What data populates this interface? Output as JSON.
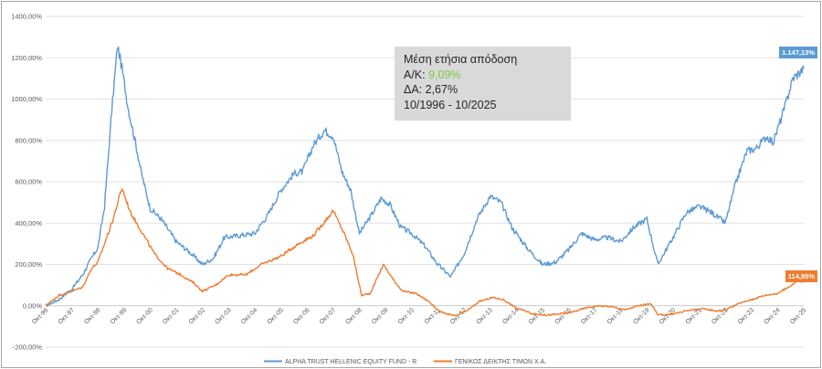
{
  "chart_data": {
    "type": "line",
    "ylim": [
      -200,
      1400
    ],
    "yticks": [
      "-200,00%",
      "0,00%",
      "200,00%",
      "400,00%",
      "600,00%",
      "800,00%",
      "1000,00%",
      "1200,00%",
      "1400,00%"
    ],
    "ytick_values": [
      -200,
      0,
      200,
      400,
      600,
      800,
      1000,
      1200,
      1400
    ],
    "xticks": [
      "Οκτ-96",
      "Οκτ-97",
      "Οκτ-98",
      "Οκτ-99",
      "Οκτ-00",
      "Οκτ-01",
      "Οκτ-02",
      "Οκτ-03",
      "Οκτ-04",
      "Οκτ-05",
      "Οκτ-06",
      "Οκτ-07",
      "Οκτ-08",
      "Οκτ-09",
      "Οκτ-10",
      "Οκτ-11",
      "Οκτ-12",
      "Οκτ-13",
      "Οκτ-14",
      "Οκτ-15",
      "Οκτ-16",
      "Οκτ-17",
      "Οκτ-18",
      "Οκτ-19",
      "Οκτ-20",
      "Οκτ-21",
      "Οκτ-22",
      "Οκτ-23",
      "Οκτ-24",
      "Οκτ-25"
    ],
    "grid": true,
    "legend": "bottom",
    "series": [
      {
        "name": "ALPHA TRUST HELLENIC EQUITY FUND - R",
        "color": "#5b9bd5",
        "end_label": "1.147,13%",
        "points": [
          [
            "1996-10",
            0
          ],
          [
            "1997-04",
            30
          ],
          [
            "1997-10",
            80
          ],
          [
            "1998-03",
            150
          ],
          [
            "1998-07",
            230
          ],
          [
            "1998-10",
            280
          ],
          [
            "1999-01",
            480
          ],
          [
            "1999-04",
            900
          ],
          [
            "1999-07",
            1260
          ],
          [
            "1999-09",
            1150
          ],
          [
            "1999-12",
            950
          ],
          [
            "2000-03",
            800
          ],
          [
            "2000-06",
            640
          ],
          [
            "2000-10",
            470
          ],
          [
            "2001-03",
            420
          ],
          [
            "2001-10",
            310
          ],
          [
            "2002-04",
            260
          ],
          [
            "2002-10",
            200
          ],
          [
            "2003-03",
            230
          ],
          [
            "2003-08",
            330
          ],
          [
            "2004-03",
            340
          ],
          [
            "2004-10",
            350
          ],
          [
            "2005-04",
            440
          ],
          [
            "2005-10",
            560
          ],
          [
            "2006-04",
            640
          ],
          [
            "2006-08",
            650
          ],
          [
            "2007-01",
            780
          ],
          [
            "2007-06",
            850
          ],
          [
            "2007-10",
            820
          ],
          [
            "2008-02",
            650
          ],
          [
            "2008-06",
            560
          ],
          [
            "2008-10",
            350
          ],
          [
            "2009-03",
            430
          ],
          [
            "2009-08",
            520
          ],
          [
            "2009-12",
            490
          ],
          [
            "2010-05",
            380
          ],
          [
            "2010-10",
            350
          ],
          [
            "2011-04",
            290
          ],
          [
            "2011-10",
            200
          ],
          [
            "2012-04",
            140
          ],
          [
            "2012-10",
            250
          ],
          [
            "2013-04",
            420
          ],
          [
            "2013-10",
            530
          ],
          [
            "2014-03",
            500
          ],
          [
            "2014-08",
            380
          ],
          [
            "2015-03",
            280
          ],
          [
            "2015-10",
            200
          ],
          [
            "2016-04",
            210
          ],
          [
            "2016-10",
            270
          ],
          [
            "2017-04",
            350
          ],
          [
            "2017-10",
            320
          ],
          [
            "2018-04",
            330
          ],
          [
            "2018-10",
            310
          ],
          [
            "2019-04",
            380
          ],
          [
            "2019-10",
            420
          ],
          [
            "2020-03",
            200
          ],
          [
            "2020-10",
            330
          ],
          [
            "2021-04",
            450
          ],
          [
            "2021-10",
            480
          ],
          [
            "2022-04",
            450
          ],
          [
            "2022-10",
            400
          ],
          [
            "2023-03",
            600
          ],
          [
            "2023-08",
            750
          ],
          [
            "2023-12",
            760
          ],
          [
            "2024-05",
            820
          ],
          [
            "2024-08",
            790
          ],
          [
            "2025-01",
            950
          ],
          [
            "2025-05",
            1100
          ],
          [
            "2025-10",
            1147.13
          ]
        ]
      },
      {
        "name": "ΓΕΝΙΚΟΣ ΔΕΙΚΤΗΣ ΤΙΜΩΝ Χ.Α.",
        "color": "#ed7d31",
        "end_label": "114,85%",
        "points": [
          [
            "1996-10",
            0
          ],
          [
            "1997-04",
            50
          ],
          [
            "1997-10",
            70
          ],
          [
            "1998-03",
            90
          ],
          [
            "1998-07",
            180
          ],
          [
            "1998-10",
            210
          ],
          [
            "1999-01",
            300
          ],
          [
            "1999-05",
            420
          ],
          [
            "1999-09",
            570
          ],
          [
            "2000-01",
            450
          ],
          [
            "2000-06",
            360
          ],
          [
            "2000-12",
            250
          ],
          [
            "2001-06",
            180
          ],
          [
            "2001-12",
            150
          ],
          [
            "2002-06",
            110
          ],
          [
            "2002-10",
            70
          ],
          [
            "2003-04",
            100
          ],
          [
            "2003-10",
            150
          ],
          [
            "2004-06",
            150
          ],
          [
            "2005-01",
            200
          ],
          [
            "2005-10",
            240
          ],
          [
            "2006-06",
            300
          ],
          [
            "2007-01",
            340
          ],
          [
            "2007-10",
            460
          ],
          [
            "2008-03",
            350
          ],
          [
            "2008-07",
            250
          ],
          [
            "2008-11",
            50
          ],
          [
            "2009-03",
            60
          ],
          [
            "2009-09",
            200
          ],
          [
            "2010-02",
            120
          ],
          [
            "2010-06",
            70
          ],
          [
            "2010-12",
            60
          ],
          [
            "2011-06",
            20
          ],
          [
            "2011-11",
            -30
          ],
          [
            "2012-06",
            -50
          ],
          [
            "2012-12",
            -20
          ],
          [
            "2013-05",
            20
          ],
          [
            "2013-11",
            40
          ],
          [
            "2014-04",
            30
          ],
          [
            "2014-10",
            -10
          ],
          [
            "2015-06",
            -40
          ],
          [
            "2015-12",
            -45
          ],
          [
            "2016-06",
            -40
          ],
          [
            "2016-12",
            -30
          ],
          [
            "2017-06",
            -10
          ],
          [
            "2017-12",
            0
          ],
          [
            "2018-06",
            -5
          ],
          [
            "2018-12",
            -20
          ],
          [
            "2019-06",
            0
          ],
          [
            "2019-12",
            10
          ],
          [
            "2020-03",
            -45
          ],
          [
            "2020-10",
            -40
          ],
          [
            "2021-06",
            -20
          ],
          [
            "2021-12",
            -15
          ],
          [
            "2022-06",
            -25
          ],
          [
            "2022-10",
            -20
          ],
          [
            "2023-04",
            10
          ],
          [
            "2023-10",
            30
          ],
          [
            "2024-04",
            50
          ],
          [
            "2024-10",
            60
          ],
          [
            "2025-03",
            90
          ],
          [
            "2025-07",
            120
          ],
          [
            "2025-10",
            114.85
          ]
        ]
      }
    ]
  },
  "info_box": {
    "title": "Μέση ετήσια απόδοση",
    "ak_label": "Α/Κ: ",
    "ak_value": "9,09%",
    "da_label": "ΔΑ: 2,67%",
    "period": "10/1996 - 10/2025",
    "ak_value_color": "#7ac943"
  }
}
